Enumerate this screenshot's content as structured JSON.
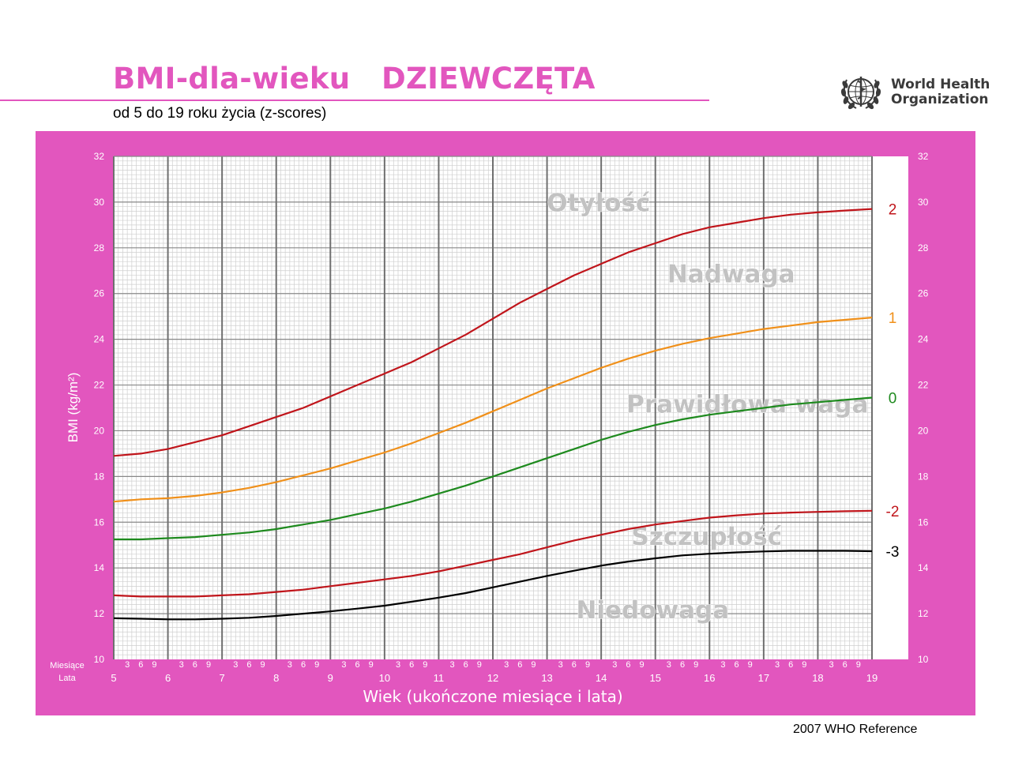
{
  "header": {
    "title": "BMI-dla-wieku   DZIEWCZĘTA",
    "subtitle": "od 5 do 19 roku życia (z-scores)",
    "org_line1": "World Health",
    "org_line2": "Organization",
    "logo_icon": "who-emblem-icon"
  },
  "footer": {
    "reference": "2007 WHO Reference"
  },
  "colors": {
    "background_panel": "#e256be",
    "grid_bg": "#ffffff",
    "z2": "#c0151b",
    "z1": "#f0901a",
    "z0": "#1e8a1e",
    "zm2": "#c0151b",
    "zm3": "#000000"
  },
  "chart_data": {
    "type": "line",
    "title": "BMI-dla-wieku   DZIEWCZĘTA",
    "subtitle": "od 5 do 19 roku życia (z-scores)",
    "xlabel": "Wiek (ukończone miesiące i lata)",
    "ylabel": "BMI (kg/m²)",
    "row_label_months": "Miesiące",
    "row_label_years": "Lata",
    "xlim": [
      5,
      19
    ],
    "ylim": [
      10,
      32
    ],
    "year_ticks": [
      "5",
      "6",
      "7",
      "8",
      "9",
      "10",
      "11",
      "12",
      "13",
      "14",
      "15",
      "16",
      "17",
      "18",
      "19"
    ],
    "month_ticks": [
      "3",
      "6",
      "9"
    ],
    "y_ticks": [
      "10",
      "12",
      "14",
      "16",
      "18",
      "20",
      "22",
      "24",
      "26",
      "28",
      "30",
      "32"
    ],
    "grid": true,
    "x": [
      5,
      5.5,
      6,
      6.5,
      7,
      7.5,
      8,
      8.5,
      9,
      9.5,
      10,
      10.5,
      11,
      11.5,
      12,
      12.5,
      13,
      13.5,
      14,
      14.5,
      15,
      15.5,
      16,
      16.5,
      17,
      17.5,
      18,
      18.5,
      19
    ],
    "series": [
      {
        "name": "2",
        "values": [
          18.9,
          19.0,
          19.2,
          19.5,
          19.8,
          20.2,
          20.6,
          21.0,
          21.5,
          22.0,
          22.5,
          23.0,
          23.6,
          24.2,
          24.9,
          25.6,
          26.2,
          26.8,
          27.3,
          27.8,
          28.2,
          28.6,
          28.9,
          29.1,
          29.3,
          29.45,
          29.55,
          29.63,
          29.7
        ]
      },
      {
        "name": "1",
        "values": [
          16.9,
          17.0,
          17.05,
          17.15,
          17.3,
          17.5,
          17.75,
          18.05,
          18.35,
          18.7,
          19.05,
          19.45,
          19.9,
          20.35,
          20.85,
          21.35,
          21.85,
          22.3,
          22.75,
          23.15,
          23.5,
          23.8,
          24.05,
          24.25,
          24.45,
          24.6,
          24.75,
          24.85,
          24.95
        ]
      },
      {
        "name": "0",
        "values": [
          15.25,
          15.25,
          15.3,
          15.35,
          15.45,
          15.55,
          15.7,
          15.9,
          16.1,
          16.35,
          16.6,
          16.9,
          17.25,
          17.6,
          18.0,
          18.4,
          18.8,
          19.2,
          19.6,
          19.95,
          20.25,
          20.5,
          20.7,
          20.85,
          21.0,
          21.15,
          21.25,
          21.35,
          21.45
        ]
      },
      {
        "name": "-2",
        "values": [
          12.8,
          12.75,
          12.75,
          12.75,
          12.8,
          12.85,
          12.95,
          13.05,
          13.2,
          13.35,
          13.5,
          13.65,
          13.85,
          14.1,
          14.35,
          14.6,
          14.9,
          15.2,
          15.45,
          15.7,
          15.9,
          16.05,
          16.2,
          16.3,
          16.38,
          16.42,
          16.45,
          16.48,
          16.5
        ]
      },
      {
        "name": "-3",
        "values": [
          11.8,
          11.78,
          11.75,
          11.75,
          11.78,
          11.82,
          11.9,
          12.0,
          12.1,
          12.22,
          12.35,
          12.52,
          12.7,
          12.9,
          13.15,
          13.4,
          13.65,
          13.88,
          14.1,
          14.28,
          14.42,
          14.55,
          14.62,
          14.68,
          14.72,
          14.75,
          14.75,
          14.75,
          14.73
        ]
      }
    ],
    "zone_labels": [
      {
        "text": "Otyłość",
        "x": 13.95,
        "y": 29.6
      },
      {
        "text": "Nadwaga",
        "x": 16.4,
        "y": 26.5
      },
      {
        "text": "Prawidłowa waga",
        "x": 16.7,
        "y": 20.8
      },
      {
        "text": "Szczupłość",
        "x": 15.95,
        "y": 15.0
      },
      {
        "text": "Niedowaga",
        "x": 14.95,
        "y": 11.8
      }
    ]
  }
}
